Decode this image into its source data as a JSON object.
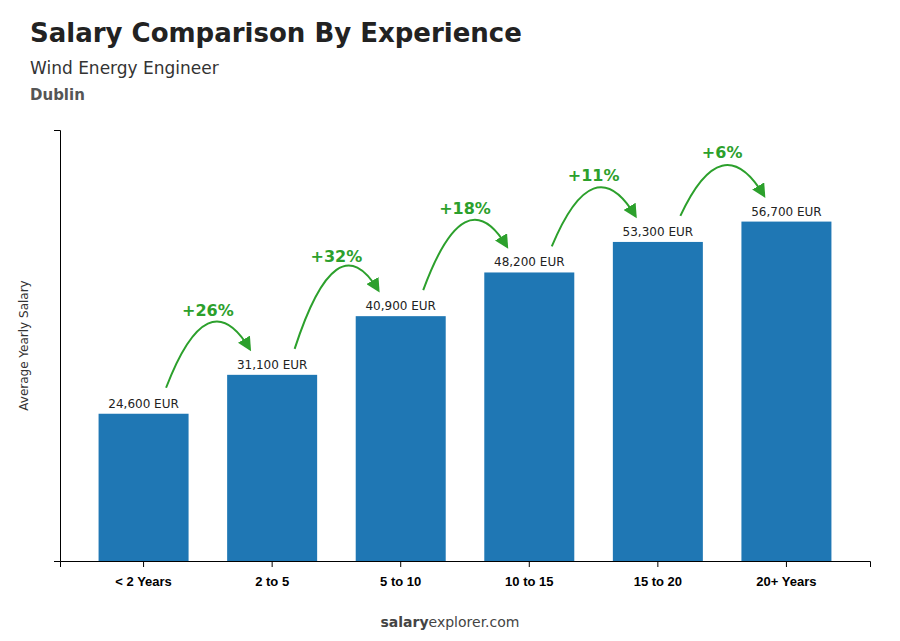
{
  "chart_data": {
    "type": "bar",
    "title": "Salary Comparison By Experience",
    "subtitle": [
      "Wind Energy Engineer",
      "Dublin"
    ],
    "ylabel": "Average Yearly Salary",
    "categories": [
      "< 2 Years",
      "2 to 5",
      "5 to 10",
      "10 to 15",
      "15 to 20",
      "20+ Years"
    ],
    "values": [
      24600,
      31100,
      40900,
      48200,
      53300,
      56700
    ],
    "value_labels": [
      "24,600 EUR",
      "31,100 EUR",
      "40,900 EUR",
      "48,200 EUR",
      "53,300 EUR",
      "56,700 EUR"
    ],
    "data_labels": true,
    "annotations": [
      "+26%",
      "+32%",
      "+18%",
      "+11%",
      "+6%"
    ],
    "caption": [
      "salary",
      "explorer.com"
    ],
    "ylim": [
      0,
      72000
    ],
    "yticks": [],
    "tick_labels": "x",
    "grid": false
  }
}
